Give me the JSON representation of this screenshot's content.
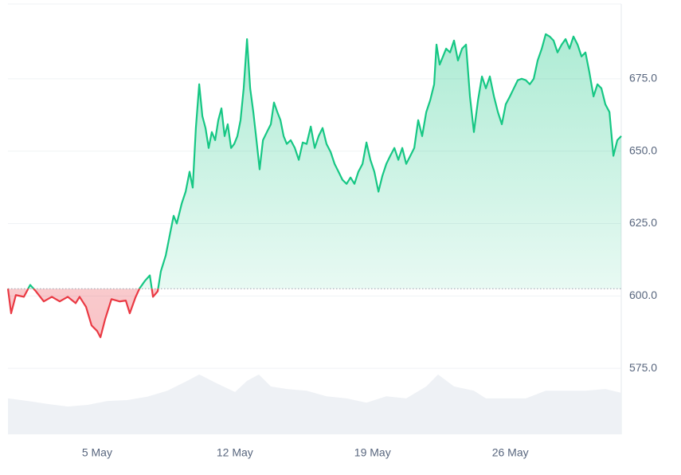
{
  "chart_data": {
    "type": "line",
    "x": [
      0.47,
      0.63,
      0.87,
      1.28,
      1.6,
      1.89,
      2.29,
      2.7,
      3.1,
      3.51,
      3.91,
      4.11,
      4.44,
      4.72,
      5.0,
      5.17,
      5.41,
      5.73,
      6.14,
      6.46,
      6.66,
      6.95,
      7.15,
      7.43,
      7.68,
      7.84,
      8.08,
      8.24,
      8.49,
      8.69,
      8.89,
      9.05,
      9.3,
      9.5,
      9.7,
      9.86,
      10.02,
      10.19,
      10.35,
      10.51,
      10.67,
      10.83,
      11.0,
      11.16,
      11.32,
      11.48,
      11.64,
      11.81,
      11.97,
      12.13,
      12.29,
      12.45,
      12.62,
      12.78,
      12.94,
      13.1,
      13.26,
      13.43,
      13.63,
      13.83,
      13.99,
      14.16,
      14.32,
      14.48,
      14.64,
      14.84,
      15.05,
      15.25,
      15.45,
      15.65,
      15.86,
      16.06,
      16.26,
      16.46,
      16.66,
      16.87,
      17.07,
      17.27,
      17.47,
      17.68,
      17.88,
      18.08,
      18.28,
      18.49,
      18.69,
      18.89,
      19.09,
      19.3,
      19.5,
      19.7,
      19.9,
      20.11,
      20.31,
      20.51,
      20.71,
      20.92,
      21.12,
      21.32,
      21.52,
      21.73,
      21.93,
      22.13,
      22.25,
      22.41,
      22.58,
      22.74,
      22.94,
      23.14,
      23.34,
      23.55,
      23.75,
      23.95,
      24.15,
      24.36,
      24.56,
      24.76,
      24.96,
      25.17,
      25.37,
      25.57,
      25.77,
      25.98,
      26.18,
      26.38,
      26.58,
      26.79,
      26.99,
      27.19,
      27.39,
      27.6,
      27.8,
      28.0,
      28.2,
      28.4,
      28.61,
      28.81,
      29.01,
      29.21,
      29.42,
      29.62,
      29.82,
      30.02,
      30.23,
      30.43,
      30.63,
      30.83,
      31.04,
      31.24,
      31.44,
      31.64
    ],
    "values": [
      602.5,
      594.0,
      600.3,
      599.7,
      603.8,
      601.6,
      598.1,
      599.7,
      598.1,
      599.7,
      597.5,
      599.7,
      596.2,
      589.8,
      587.9,
      585.7,
      592.0,
      598.9,
      598.1,
      598.4,
      594.0,
      599.5,
      602.5,
      605.2,
      607.1,
      599.7,
      601.6,
      608.5,
      614.0,
      620.9,
      627.7,
      625.0,
      631.9,
      636.0,
      642.9,
      637.4,
      658.0,
      673.1,
      662.1,
      658.0,
      651.1,
      656.6,
      653.8,
      660.7,
      664.8,
      655.2,
      659.3,
      651.1,
      652.5,
      655.2,
      660.7,
      671.7,
      688.7,
      671.7,
      663.5,
      653.8,
      643.7,
      653.8,
      656.6,
      659.3,
      666.8,
      663.5,
      660.7,
      655.2,
      652.5,
      653.8,
      651.1,
      647.0,
      653.0,
      652.5,
      658.5,
      651.1,
      655.2,
      658.0,
      652.5,
      649.7,
      645.6,
      642.9,
      640.1,
      638.7,
      640.9,
      638.7,
      642.9,
      645.6,
      653.0,
      647.0,
      642.9,
      636.0,
      641.5,
      645.6,
      648.4,
      651.1,
      647.0,
      651.1,
      645.6,
      648.4,
      651.1,
      660.7,
      655.2,
      663.5,
      667.6,
      673.1,
      686.8,
      679.9,
      682.7,
      685.4,
      684.1,
      688.2,
      681.3,
      685.4,
      686.8,
      668.9,
      656.6,
      667.6,
      675.8,
      671.7,
      675.8,
      668.9,
      663.5,
      659.3,
      666.2,
      668.9,
      671.7,
      674.5,
      675.0,
      674.5,
      673.1,
      675.0,
      681.3,
      685.4,
      690.4,
      689.6,
      688.2,
      684.1,
      686.8,
      688.7,
      685.4,
      689.6,
      686.8,
      682.7,
      684.1,
      677.2,
      668.9,
      673.1,
      671.7,
      666.2,
      663.5,
      648.4,
      653.8,
      655.2
    ],
    "color_up": "#16c784",
    "color_down": "#ea3943",
    "baseline": 602.5,
    "xlim": [
      0.47,
      31.64
    ],
    "xticks": [
      {
        "value": 5,
        "label": "5 May"
      },
      {
        "value": 12,
        "label": "12 May"
      },
      {
        "value": 19,
        "label": "19 May"
      },
      {
        "value": 26,
        "label": "26 May"
      }
    ],
    "ylim": [
      552.2,
      700
    ],
    "yticks": [
      {
        "value": 575,
        "label": "575.0"
      },
      {
        "value": 600,
        "label": "600.0"
      },
      {
        "value": 625,
        "label": "625.0"
      },
      {
        "value": 650,
        "label": "650.0"
      },
      {
        "value": 675,
        "label": "675.0"
      }
    ],
    "grid": true,
    "volume": {
      "type": "area",
      "color": "#eef1f5",
      "y2lim": [
        0,
        100
      ],
      "x": [
        0.47,
        1.48,
        2.49,
        3.51,
        4.52,
        5.53,
        6.54,
        7.55,
        8.57,
        9.58,
        10.19,
        11.0,
        12.01,
        12.62,
        13.22,
        13.83,
        14.64,
        15.65,
        16.66,
        17.68,
        18.69,
        19.7,
        20.71,
        21.73,
        22.33,
        23.14,
        24.15,
        24.76,
        25.77,
        26.79,
        27.8,
        28.81,
        29.82,
        30.83,
        31.64
      ],
      "values": [
        8.4,
        7.8,
        7.1,
        6.5,
        6.9,
        7.8,
        8.0,
        8.8,
        10.2,
        12.5,
        14.0,
        12.1,
        9.9,
        12.5,
        14.0,
        11.2,
        10.6,
        10.2,
        8.9,
        8.4,
        7.4,
        8.9,
        8.4,
        11.2,
        14.0,
        11.2,
        10.2,
        8.4,
        8.4,
        8.4,
        10.2,
        10.2,
        10.2,
        10.6,
        9.7
      ]
    }
  }
}
